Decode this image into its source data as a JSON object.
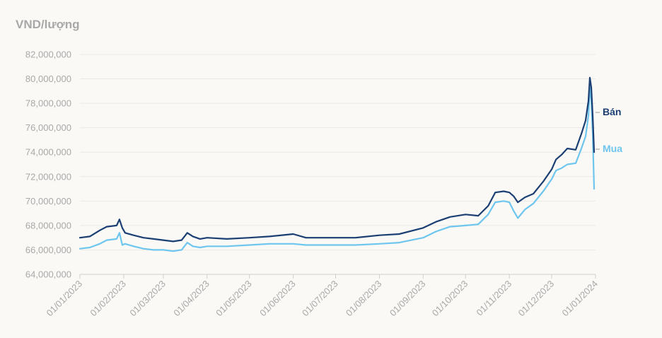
{
  "chart_data": {
    "type": "line",
    "unit_label": "VND/lượng",
    "y_ticks": [
      64000000,
      66000000,
      68000000,
      70000000,
      72000000,
      74000000,
      76000000,
      78000000,
      80000000,
      82000000
    ],
    "y_tick_labels": [
      "64,000,000",
      "66,000,000",
      "68,000,000",
      "70,000,000",
      "72,000,000",
      "74,000,000",
      "76,000,000",
      "78,000,000",
      "80,000,000",
      "82,000,000"
    ],
    "ylim": [
      64000000,
      82000000
    ],
    "xlim": [
      "2023-01-01",
      "2024-01-01"
    ],
    "x_ticks": [
      "2023-01-01",
      "2023-02-01",
      "2023-03-01",
      "2023-04-01",
      "2023-05-01",
      "2023-06-01",
      "2023-07-01",
      "2023-08-01",
      "2023-09-01",
      "2023-10-01",
      "2023-11-01",
      "2023-12-01",
      "2024-01-01"
    ],
    "x_tick_labels": [
      "01/01/2023",
      "01/02/2023",
      "01/03/2023",
      "01/04/2023",
      "01/05/2023",
      "01/06/2023",
      "01/07/2023",
      "01/08/2023",
      "01/09/2023",
      "01/10/2023",
      "01/11/2023",
      "01/12/2023",
      "01/01/2024"
    ],
    "grid": true,
    "series": [
      {
        "name": "Bán",
        "color": "#1b3f73",
        "x": [
          "2023-01-01",
          "2023-01-08",
          "2023-01-15",
          "2023-01-20",
          "2023-01-27",
          "2023-01-29",
          "2023-01-31",
          "2023-02-02",
          "2023-02-08",
          "2023-02-15",
          "2023-02-22",
          "2023-03-01",
          "2023-03-08",
          "2023-03-14",
          "2023-03-18",
          "2023-03-22",
          "2023-03-27",
          "2023-04-01",
          "2023-04-15",
          "2023-05-01",
          "2023-05-15",
          "2023-06-01",
          "2023-06-10",
          "2023-06-20",
          "2023-07-01",
          "2023-07-15",
          "2023-08-01",
          "2023-08-15",
          "2023-09-01",
          "2023-09-10",
          "2023-09-20",
          "2023-10-01",
          "2023-10-10",
          "2023-10-17",
          "2023-10-22",
          "2023-10-28",
          "2023-11-01",
          "2023-11-04",
          "2023-11-07",
          "2023-11-12",
          "2023-11-18",
          "2023-11-25",
          "2023-12-01",
          "2023-12-04",
          "2023-12-08",
          "2023-12-12",
          "2023-12-18",
          "2023-12-22",
          "2023-12-25",
          "2023-12-27",
          "2023-12-28",
          "2023-12-29",
          "2023-12-30",
          "2023-12-31"
        ],
        "values": [
          67000000,
          67100000,
          67600000,
          67900000,
          68000000,
          68500000,
          67800000,
          67400000,
          67200000,
          67000000,
          66900000,
          66800000,
          66700000,
          66800000,
          67400000,
          67100000,
          66900000,
          67000000,
          66900000,
          67000000,
          67100000,
          67300000,
          67000000,
          67000000,
          67000000,
          67000000,
          67200000,
          67300000,
          67800000,
          68300000,
          68700000,
          68900000,
          68800000,
          69600000,
          70700000,
          70800000,
          70700000,
          70400000,
          69900000,
          70300000,
          70600000,
          71600000,
          72600000,
          73400000,
          73800000,
          74300000,
          74200000,
          75500000,
          76600000,
          78200000,
          80100000,
          79300000,
          77000000,
          74000000
        ]
      },
      {
        "name": "Mua",
        "color": "#6ec6ee",
        "x": [
          "2023-01-01",
          "2023-01-08",
          "2023-01-15",
          "2023-01-20",
          "2023-01-27",
          "2023-01-29",
          "2023-01-31",
          "2023-02-02",
          "2023-02-08",
          "2023-02-15",
          "2023-02-22",
          "2023-03-01",
          "2023-03-08",
          "2023-03-14",
          "2023-03-18",
          "2023-03-22",
          "2023-03-27",
          "2023-04-01",
          "2023-04-15",
          "2023-05-01",
          "2023-05-15",
          "2023-06-01",
          "2023-06-10",
          "2023-06-20",
          "2023-07-01",
          "2023-07-15",
          "2023-08-01",
          "2023-08-15",
          "2023-09-01",
          "2023-09-10",
          "2023-09-20",
          "2023-10-01",
          "2023-10-10",
          "2023-10-17",
          "2023-10-22",
          "2023-10-28",
          "2023-11-01",
          "2023-11-04",
          "2023-11-07",
          "2023-11-12",
          "2023-11-18",
          "2023-11-25",
          "2023-12-01",
          "2023-12-04",
          "2023-12-08",
          "2023-12-12",
          "2023-12-18",
          "2023-12-22",
          "2023-12-25",
          "2023-12-27",
          "2023-12-28",
          "2023-12-29",
          "2023-12-30",
          "2023-12-31"
        ],
        "values": [
          66100000,
          66200000,
          66500000,
          66800000,
          66900000,
          67400000,
          66400000,
          66500000,
          66300000,
          66100000,
          66000000,
          66000000,
          65900000,
          66000000,
          66600000,
          66300000,
          66200000,
          66300000,
          66300000,
          66400000,
          66500000,
          66500000,
          66400000,
          66400000,
          66400000,
          66400000,
          66500000,
          66600000,
          67000000,
          67500000,
          67900000,
          68000000,
          68100000,
          68900000,
          69900000,
          70000000,
          69900000,
          69200000,
          68600000,
          69300000,
          69800000,
          70800000,
          71800000,
          72500000,
          72700000,
          73000000,
          73100000,
          74300000,
          75300000,
          77000000,
          79300000,
          78300000,
          75500000,
          71000000
        ]
      }
    ],
    "legend_labels": [
      "Bán",
      "Mua"
    ],
    "legend_placement": "right, at line ends"
  }
}
